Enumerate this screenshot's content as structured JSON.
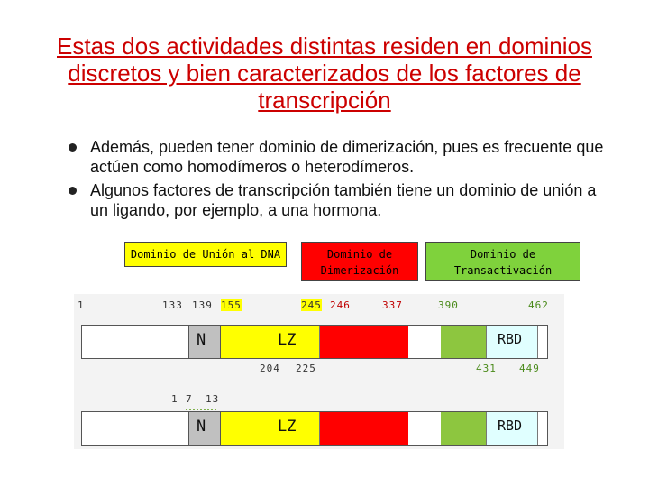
{
  "slide": {
    "title": "Estas dos actividades distintas residen en dominios discretos y bien caracterizados de los factores de transcripción",
    "bullets": [
      "Además, pueden tener dominio de dimerización, pues es frecuente que actúen como homodímeros o heterodímeros.",
      "Algunos factores de transcripción también tiene un dominio de unión a un ligando, por ejemplo, a una hormona."
    ]
  },
  "domains": {
    "dna": "Dominio de Unión al DNA",
    "dimer": "Dominio de Dimerización",
    "transact": "Dominio de Transactivación"
  },
  "diagram": {
    "top_numbers": {
      "n1": "1",
      "n133": "133",
      "n139": "139",
      "n155": "155",
      "n245": "245",
      "n246": "246",
      "n337": "337",
      "n390": "390",
      "n462": "462"
    },
    "mid_numbers": {
      "n204": "204",
      "n225": "225",
      "n431": "431",
      "n449": "449"
    },
    "second_numbers": {
      "n1": "1",
      "n7": "7",
      "n13": "13"
    },
    "bar1": {
      "n": "N",
      "lz": "LZ",
      "rbd": "RBD"
    },
    "bar2": {
      "n": "N",
      "lz": "LZ",
      "rbd": "RBD"
    }
  },
  "colors": {
    "title": "#cc0000",
    "dna_box": "#ffff00",
    "dimer_box": "#ff0000",
    "transact_box": "#7fd23c",
    "gray": "#c0c0c0",
    "yellow": "#ffff00",
    "red": "#ff0000",
    "green": "#8dc63f",
    "light_cyan": "#e0ffff"
  }
}
